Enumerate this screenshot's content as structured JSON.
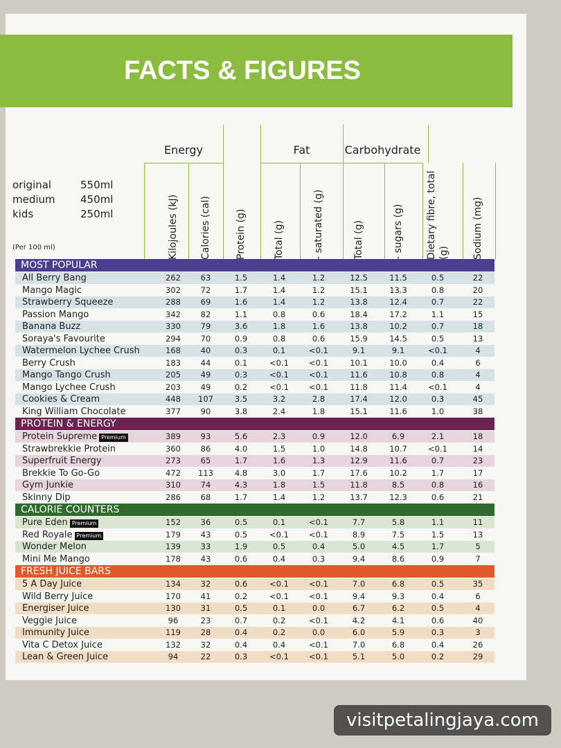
{
  "header": {
    "title": "FACTS & FIGURES"
  },
  "sizes": [
    {
      "name": "original",
      "volume": "550ml"
    },
    {
      "name": "medium",
      "volume": "450ml"
    },
    {
      "name": "kids",
      "volume": "250ml"
    }
  ],
  "per": "(Per 100 ml)",
  "column_groups": [
    {
      "label": "Energy",
      "from": 0,
      "to": 1
    },
    {
      "label": "Fat",
      "from": 3,
      "to": 4
    },
    {
      "label": "Carbohydrate",
      "from": 5,
      "to": 6
    }
  ],
  "columns": [
    "Kilojoules (kJ)",
    "Calories (cal)",
    "Protein (g)",
    "Total (g)",
    "- saturated (g)",
    "Total (g)",
    "- sugars (g)",
    "Dietary fibre, total (g)",
    "Sodium (mg)"
  ],
  "sections": [
    {
      "title": "MOST POPULAR",
      "color": "#4b3d8f",
      "shade": "#d7e1e6",
      "rows": [
        {
          "name": "All Berry Bang",
          "values": [
            "262",
            "63",
            "1.5",
            "1.4",
            "1.2",
            "12.5",
            "11.5",
            "0.5",
            "22"
          ]
        },
        {
          "name": "Mango Magic",
          "values": [
            "302",
            "72",
            "1.7",
            "1.4",
            "1.2",
            "15.1",
            "13.3",
            "0.8",
            "20"
          ]
        },
        {
          "name": "Strawberry Squeeze",
          "values": [
            "288",
            "69",
            "1.6",
            "1.4",
            "1.2",
            "13.8",
            "12.4",
            "0.7",
            "22"
          ]
        },
        {
          "name": "Passion Mango",
          "values": [
            "342",
            "82",
            "1.1",
            "0.8",
            "0.6",
            "18.4",
            "17.2",
            "1.1",
            "15"
          ]
        },
        {
          "name": "Banana Buzz",
          "values": [
            "330",
            "79",
            "3.6",
            "1.8",
            "1.6",
            "13.8",
            "10.2",
            "0.7",
            "18"
          ]
        },
        {
          "name": "Soraya's Favourite",
          "values": [
            "294",
            "70",
            "0.9",
            "0.8",
            "0.6",
            "15.9",
            "14.5",
            "0.5",
            "13"
          ]
        },
        {
          "name": "Watermelon Lychee Crush",
          "values": [
            "168",
            "40",
            "0.3",
            "0.1",
            "<0.1",
            "9.1",
            "9.1",
            "<0.1",
            "4"
          ]
        },
        {
          "name": "Berry Crush",
          "values": [
            "183",
            "44",
            "0.1",
            "<0.1",
            "<0.1",
            "10.1",
            "10.0",
            "0.4",
            "6"
          ]
        },
        {
          "name": "Mango Tango Crush",
          "values": [
            "205",
            "49",
            "0.3",
            "<0.1",
            "<0.1",
            "11.6",
            "10.8",
            "0.8",
            "4"
          ]
        },
        {
          "name": "Mango Lychee Crush",
          "values": [
            "203",
            "49",
            "0.2",
            "<0.1",
            "<0.1",
            "11.8",
            "11.4",
            "<0.1",
            "4"
          ]
        },
        {
          "name": "Cookies & Cream",
          "values": [
            "448",
            "107",
            "3.5",
            "3.2",
            "2.8",
            "17.4",
            "12.0",
            "0.3",
            "45"
          ]
        },
        {
          "name": "King William Chocolate",
          "values": [
            "377",
            "90",
            "3.8",
            "2.4",
            "1.8",
            "15.1",
            "11.6",
            "1.0",
            "38"
          ]
        }
      ]
    },
    {
      "title": "PROTEIN & ENERGY",
      "color": "#6b2352",
      "shade": "#e6d5dd",
      "rows": [
        {
          "name": "Protein Supreme",
          "badge": "Premium",
          "values": [
            "389",
            "93",
            "5.6",
            "2.3",
            "0.9",
            "12.0",
            "6.9",
            "2.1",
            "18"
          ]
        },
        {
          "name": "Strawbrekkie Protein",
          "values": [
            "360",
            "86",
            "4.0",
            "1.5",
            "1.0",
            "14.8",
            "10.7",
            "<0.1",
            "14"
          ]
        },
        {
          "name": "Superfruit Energy",
          "values": [
            "273",
            "65",
            "1.7",
            "1.6",
            "1.3",
            "12.9",
            "11.6",
            "0.7",
            "23"
          ]
        },
        {
          "name": "Brekkie To Go-Go",
          "values": [
            "472",
            "113",
            "4.8",
            "3.0",
            "1.7",
            "17.6",
            "10.2",
            "1.7",
            "17"
          ]
        },
        {
          "name": "Gym Junkie",
          "values": [
            "310",
            "74",
            "4.3",
            "1.8",
            "1.5",
            "11.8",
            "8.5",
            "0.8",
            "16"
          ]
        },
        {
          "name": "Skinny Dip",
          "values": [
            "286",
            "68",
            "1.7",
            "1.4",
            "1.2",
            "13.7",
            "12.3",
            "0.6",
            "21"
          ]
        }
      ]
    },
    {
      "title": "CALORIE COUNTERS",
      "color": "#2f6b2c",
      "shade": "#dbe6d2",
      "rows": [
        {
          "name": "Pure Eden",
          "badge": "Premium",
          "values": [
            "152",
            "36",
            "0.5",
            "0.1",
            "<0.1",
            "7.7",
            "5.8",
            "1.1",
            "11"
          ]
        },
        {
          "name": "Red Royale",
          "badge": "Premium",
          "values": [
            "179",
            "43",
            "0.5",
            "<0.1",
            "<0.1",
            "8.9",
            "7.5",
            "1.5",
            "13"
          ]
        },
        {
          "name": "Wonder Melon",
          "values": [
            "139",
            "33",
            "1.9",
            "0.5",
            "0.4",
            "5.0",
            "4.5",
            "1.7",
            "5"
          ]
        },
        {
          "name": "Mini Me Mango",
          "values": [
            "178",
            "43",
            "0.6",
            "0.4",
            "0.3",
            "9.4",
            "8.6",
            "0.9",
            "7"
          ]
        }
      ]
    },
    {
      "title": "FRESH JUICE BARS",
      "color": "#e0592a",
      "shade": "#f1dcc4",
      "rows": [
        {
          "name": "5 A Day Juice",
          "values": [
            "134",
            "32",
            "0.6",
            "<0.1",
            "<0.1",
            "7.0",
            "6.8",
            "0.5",
            "35"
          ]
        },
        {
          "name": "Wild Berry Juice",
          "values": [
            "170",
            "41",
            "0.2",
            "<0.1",
            "<0.1",
            "9.4",
            "9.3",
            "0.4",
            "6"
          ]
        },
        {
          "name": "Energiser Juice",
          "values": [
            "130",
            "31",
            "0.5",
            "0.1",
            "0.0",
            "6.7",
            "6.2",
            "0.5",
            "4"
          ]
        },
        {
          "name": "Veggie Juice",
          "values": [
            "96",
            "23",
            "0.7",
            "0.2",
            "<0.1",
            "4.2",
            "4.1",
            "0.6",
            "40"
          ]
        },
        {
          "name": "Immunity Juice",
          "values": [
            "119",
            "28",
            "0.4",
            "0.2",
            "0.0",
            "6.0",
            "5.9",
            "0.3",
            "3"
          ]
        },
        {
          "name": "Vita C Detox Juice",
          "values": [
            "132",
            "32",
            "0.4",
            "0.4",
            "<0.1",
            "7.0",
            "6.8",
            "0.4",
            "26"
          ]
        },
        {
          "name": "Lean & Green Juice",
          "values": [
            "94",
            "22",
            "0.3",
            "<0.1",
            "<0.1",
            "5.1",
            "5.0",
            "0.2",
            "29"
          ]
        }
      ]
    }
  ],
  "watermark": "visitpetalingjaya.com"
}
